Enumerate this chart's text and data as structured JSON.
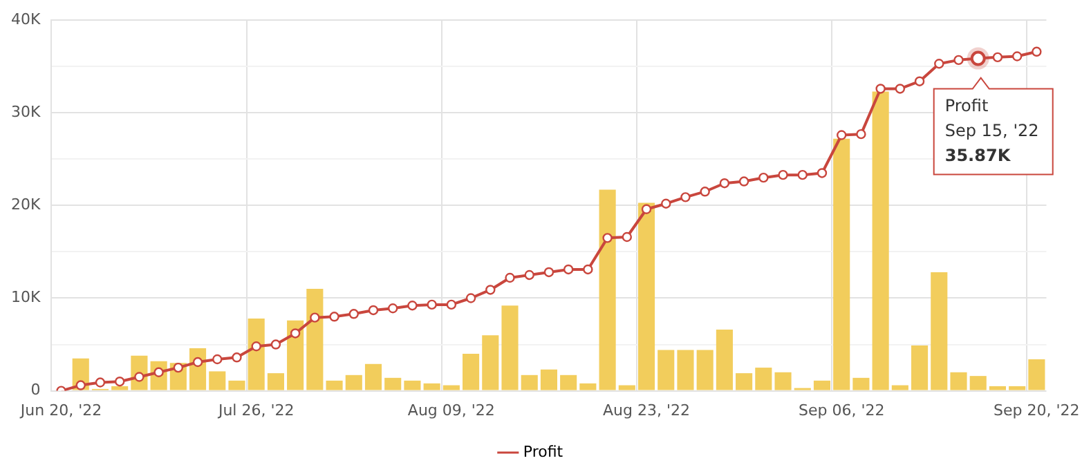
{
  "chart_data": {
    "type": "line",
    "categories": [
      "Jun 20, '22",
      null,
      null,
      null,
      null,
      null,
      null,
      null,
      null,
      null,
      "Jul 26, '22",
      null,
      null,
      null,
      null,
      null,
      null,
      null,
      null,
      null,
      "Aug 09, '22",
      null,
      null,
      null,
      null,
      null,
      null,
      null,
      null,
      null,
      "Aug 23, '22",
      null,
      null,
      null,
      null,
      null,
      null,
      null,
      null,
      null,
      "Sep 06, '22",
      null,
      null,
      null,
      null,
      null,
      null,
      null,
      null,
      null,
      "Sep 20, '22"
    ],
    "series": [
      {
        "type": "bar",
        "color": "#f2cd5c",
        "values": [
          null,
          3.5,
          0.2,
          0.5,
          3.8,
          3.2,
          3.0,
          4.6,
          2.1,
          1.1,
          7.8,
          1.9,
          7.6,
          11.0,
          1.1,
          1.7,
          2.9,
          1.4,
          1.1,
          0.8,
          0.6,
          4.0,
          6.0,
          9.2,
          1.7,
          2.3,
          1.7,
          0.8,
          21.7,
          0.6,
          20.3,
          4.4,
          4.4,
          4.4,
          6.6,
          1.9,
          2.5,
          2.0,
          0.3,
          1.1,
          27.2,
          1.4,
          32.3,
          0.6,
          4.9,
          12.8,
          2.0,
          1.6,
          0.5,
          0.5,
          3.4
        ]
      },
      {
        "name": "Profit",
        "color": "#c9463d",
        "values": [
          0,
          0.6,
          0.9,
          1.0,
          1.5,
          2.0,
          2.5,
          3.1,
          3.4,
          3.6,
          4.8,
          5.0,
          6.2,
          7.9,
          8.0,
          8.3,
          8.7,
          8.9,
          9.2,
          9.3,
          9.3,
          10.0,
          10.9,
          12.2,
          12.5,
          12.8,
          13.1,
          13.1,
          16.5,
          16.6,
          19.6,
          20.2,
          20.9,
          21.5,
          22.4,
          22.6,
          23.0,
          23.3,
          23.3,
          23.5,
          27.6,
          27.7,
          32.6,
          32.6,
          33.4,
          35.3,
          35.7,
          35.87,
          36.0,
          36.1,
          36.6
        ]
      }
    ],
    "ylim": [
      0,
      40
    ],
    "yticks": [
      {
        "value": 0,
        "label": "0"
      },
      {
        "value": 5,
        "label": null
      },
      {
        "value": 10,
        "label": "10K"
      },
      {
        "value": 15,
        "label": null
      },
      {
        "value": 20,
        "label": "20K"
      },
      {
        "value": 25,
        "label": null
      },
      {
        "value": 30,
        "label": "30K"
      },
      {
        "value": 35,
        "label": null
      },
      {
        "value": 40,
        "label": "40K"
      }
    ],
    "grid": true,
    "legend": "bottom",
    "marker": "circle",
    "line_style": "solid",
    "annotations": [
      {
        "text": "Profit\nSep 15, '22\n35.87K",
        "y": 35.87
      }
    ]
  }
}
